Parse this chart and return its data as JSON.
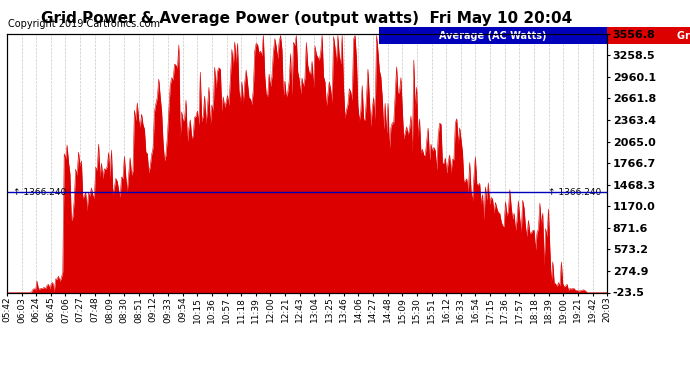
{
  "title": "Grid Power & Average Power (output watts)  Fri May 10 20:04",
  "copyright": "Copyright 2019 Cartronics.com",
  "ylabel_right_ticks": [
    3556.8,
    3258.5,
    2960.1,
    2661.8,
    2363.4,
    2065.0,
    1766.7,
    1468.3,
    1170.0,
    871.6,
    573.2,
    274.9,
    -23.5
  ],
  "avg_line_value": 1366.24,
  "avg_line_label": "1366.240",
  "legend_avg_label": "Average (AC Watts)",
  "legend_grid_label": "Grid  (AC Watts)",
  "legend_avg_color": "#0000bb",
  "legend_grid_color": "#dd0000",
  "fill_color": "#dd0000",
  "line_color": "#dd0000",
  "avg_line_color": "#0000bb",
  "background_color": "#ffffff",
  "grid_color": "#bbbbbb",
  "title_fontsize": 11,
  "copyright_fontsize": 7,
  "tick_fontsize": 6.5,
  "ytick_right_fontsize": 8,
  "x_tick_labels": [
    "05:42",
    "06:03",
    "06:24",
    "06:45",
    "07:06",
    "07:27",
    "07:48",
    "08:09",
    "08:30",
    "08:51",
    "09:12",
    "09:33",
    "09:54",
    "10:15",
    "10:36",
    "10:57",
    "11:18",
    "11:39",
    "12:00",
    "12:21",
    "12:43",
    "13:04",
    "13:25",
    "13:46",
    "14:06",
    "14:27",
    "14:48",
    "15:09",
    "15:30",
    "15:51",
    "16:12",
    "16:33",
    "16:54",
    "17:15",
    "17:36",
    "17:57",
    "18:18",
    "18:39",
    "19:00",
    "19:21",
    "19:42",
    "20:03"
  ],
  "ylim_min": -23.5,
  "ylim_max": 3556.8
}
